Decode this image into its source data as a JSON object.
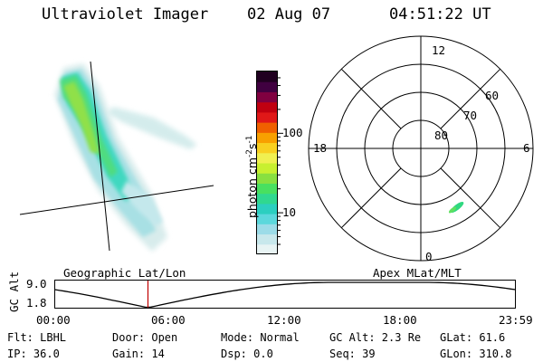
{
  "header": {
    "instrument": "Ultraviolet Imager",
    "date": "02 Aug 07",
    "time": "04:51:22 UT"
  },
  "colorbar": {
    "label": "photon cm-2s-1",
    "label_parts": {
      "main": "photon cm",
      "exp1": "-2",
      "mid": "s",
      "exp2": "-1"
    },
    "ticks": [
      {
        "value": 100,
        "text": "100"
      },
      {
        "value": 10,
        "text": "10"
      }
    ],
    "range": [
      3,
      600
    ],
    "scale": "log",
    "colors": [
      "#e8f4f4",
      "#c8e8ec",
      "#9cdce8",
      "#5cd8dc",
      "#2ccfc0",
      "#30d890",
      "#48e060",
      "#88e040",
      "#c8f030",
      "#f0f050",
      "#f8d020",
      "#f8a000",
      "#f06000",
      "#e01818",
      "#c00010",
      "#800040",
      "#400040",
      "#200020"
    ]
  },
  "polar_plot": {
    "labels": {
      "top": "12",
      "bottom": "0",
      "left": "18",
      "right": "6",
      "ring_60": "60",
      "ring_70": "70",
      "ring_80": "80"
    }
  },
  "altitude_plot": {
    "axis_label": "GC Alt",
    "y_max": "9.0",
    "y_min": "1.8",
    "left_title": "Geographic Lat/Lon",
    "right_title": "Apex MLat/MLT",
    "x_ticks": [
      "00:00",
      "06:00",
      "12:00",
      "18:00",
      "23:59"
    ],
    "current_time_hours": 4.856,
    "marker_color": "#c00000"
  },
  "info": {
    "filter": "Flt: LBHL",
    "door": "Door: Open",
    "mode": "Mode: Normal",
    "gc_alt": "GC Alt: 2.3 Re",
    "glat": "GLat:  61.6",
    "ip": "IP: 36.0",
    "gain": "Gain: 14",
    "dsp": "Dsp:     0.0",
    "seq": "Seq: 39",
    "glon": "GLon: 310.8"
  }
}
